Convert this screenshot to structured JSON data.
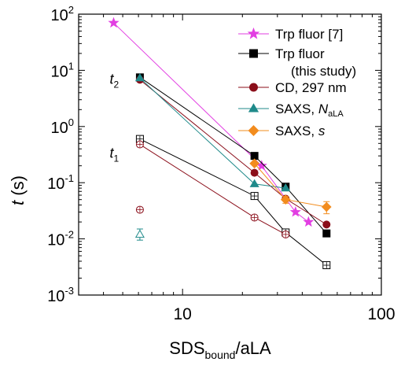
{
  "chart_data": {
    "type": "scatter",
    "xscale": "log",
    "yscale": "log",
    "xlim": [
      3,
      100
    ],
    "ylim": [
      0.001,
      100
    ],
    "x_ticks": [
      {
        "value": 10,
        "label": "10"
      },
      {
        "value": 100,
        "label": "100"
      }
    ],
    "y_ticks": [
      {
        "value": 0.001,
        "base": "10",
        "exp": "-3"
      },
      {
        "value": 0.01,
        "base": "10",
        "exp": "-2"
      },
      {
        "value": 0.1,
        "base": "10",
        "exp": "-1"
      },
      {
        "value": 1,
        "base": "10",
        "exp": "0"
      },
      {
        "value": 10,
        "base": "10",
        "exp": "1"
      },
      {
        "value": 100,
        "base": "10",
        "exp": "2"
      }
    ],
    "xlabel": {
      "main": "SDS",
      "sub": "bound",
      "suffix": "/aLA"
    },
    "ylabel": {
      "italic": "t",
      "suffix": " (s)"
    },
    "annotations": [
      {
        "id": "t2",
        "italic": "t",
        "sub": "2",
        "x": 4.3,
        "y": 5.8
      },
      {
        "id": "t1",
        "italic": "t",
        "sub": "1",
        "x": 4.3,
        "y": 0.28
      }
    ],
    "legend": {
      "placement": "top-right",
      "entries": [
        {
          "series": "trp_lit",
          "lines": [
            "Trp fluor [7]"
          ]
        },
        {
          "series": "trp_this",
          "lines": [
            "Trp fluor",
            "(this study)"
          ]
        },
        {
          "series": "cd",
          "lines": [
            "CD, 297 nm"
          ]
        },
        {
          "series": "saxs_n",
          "lines": [
            "SAXS, ",
            "N",
            "aLA"
          ]
        },
        {
          "series": "saxs_s",
          "lines": [
            "SAXS, ",
            "s"
          ]
        }
      ]
    },
    "series": [
      {
        "key": "trp_lit",
        "name": "Trp fluor [7]",
        "color": "#e23ee2",
        "marker": "star",
        "segments": [
          {
            "fill": "filled",
            "points": [
              [
                4.5,
                70
              ],
              [
                25,
                0.2
              ],
              [
                37,
                0.03
              ],
              [
                43,
                0.02
              ]
            ]
          }
        ]
      },
      {
        "key": "trp_this",
        "name": "Trp fluor (this study)",
        "color": "#000000",
        "marker": "square",
        "segments": [
          {
            "fill": "filled",
            "points": [
              [
                6.1,
                7.5
              ],
              [
                23,
                0.3
              ],
              [
                33,
                0.085
              ],
              [
                53,
                0.0125
              ]
            ]
          },
          {
            "fill": "open-cross",
            "points": [
              [
                6.1,
                0.6
              ],
              [
                23,
                0.058
              ],
              [
                33,
                0.013
              ],
              [
                53,
                0.0034
              ]
            ]
          }
        ]
      },
      {
        "key": "cd",
        "name": "CD, 297 nm",
        "color": "#8b0e1a",
        "marker": "circle",
        "segments": [
          {
            "fill": "filled",
            "points": [
              [
                6.1,
                6.8
              ],
              [
                23,
                0.15
              ],
              [
                33,
                0.052
              ],
              [
                53,
                0.018
              ]
            ]
          },
          {
            "fill": "open-cross",
            "points": [
              [
                6.1,
                0.48
              ],
              [
                23,
                0.024
              ],
              [
                33,
                0.012
              ]
            ]
          },
          {
            "fill": "open-cross",
            "points": [
              [
                6.1,
                0.033
              ]
            ]
          }
        ]
      },
      {
        "key": "saxs_n",
        "name": "SAXS, NaLA",
        "color": "#1f8a8a",
        "marker": "triangle",
        "segments": [
          {
            "fill": "filled",
            "points": [
              [
                6.1,
                7.3
              ],
              [
                23,
                0.095
              ],
              [
                33,
                0.08
              ]
            ]
          },
          {
            "fill": "open",
            "points": [
              [
                6.1,
                0.012
              ]
            ],
            "err": [
              0.0095,
              0.015
            ]
          }
        ]
      },
      {
        "key": "saxs_s",
        "name": "SAXS, s",
        "color": "#f28c1e",
        "marker": "diamond",
        "segments": [
          {
            "fill": "filled",
            "points": [
              [
                23,
                0.22
              ],
              [
                33,
                0.05
              ],
              [
                53,
                0.037
              ]
            ],
            "err": [
              null,
              [
                0.043,
                0.057
              ],
              [
                0.028,
                0.046
              ]
            ]
          }
        ]
      }
    ]
  }
}
